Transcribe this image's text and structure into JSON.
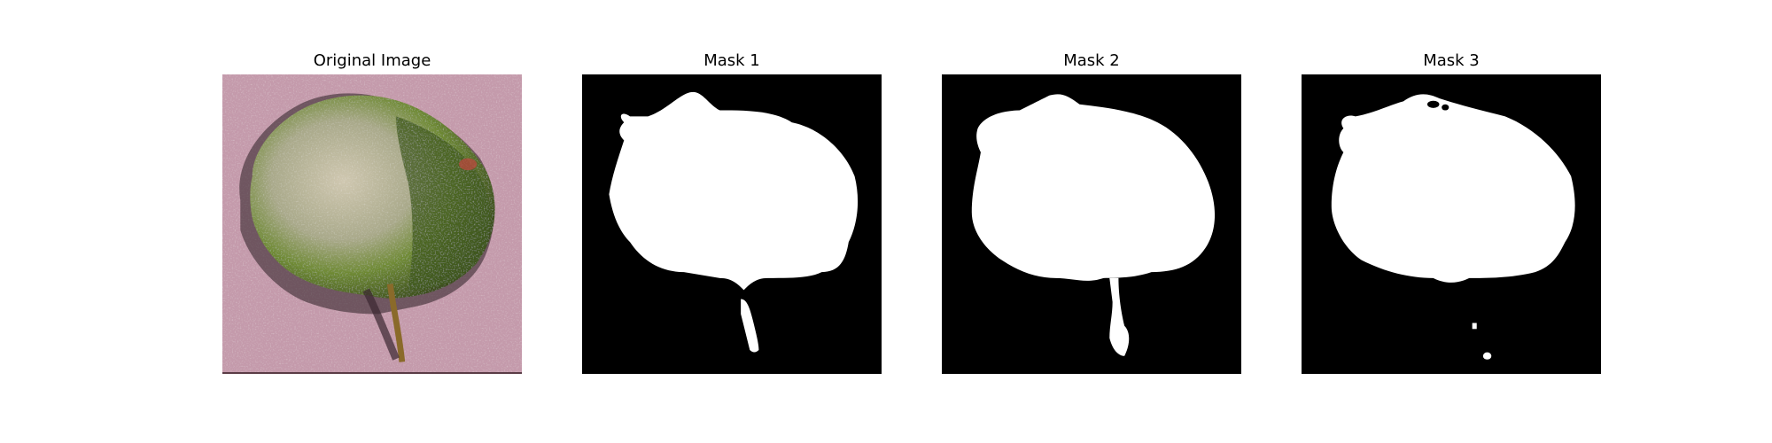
{
  "figure": {
    "panels": [
      {
        "title": "Original Image",
        "kind": "photo"
      },
      {
        "title": "Mask 1",
        "kind": "mask"
      },
      {
        "title": "Mask 2",
        "kind": "mask"
      },
      {
        "title": "Mask 3",
        "kind": "mask"
      }
    ]
  },
  "colors": {
    "background": "#c49aab",
    "leaf_dark": "#3a4a1e",
    "leaf_mid": "#5f7a2e",
    "leaf_light": "#c8c0a8",
    "stem": "#6b5a2a",
    "mask_fg": "#ffffff",
    "mask_bg": "#000000"
  }
}
